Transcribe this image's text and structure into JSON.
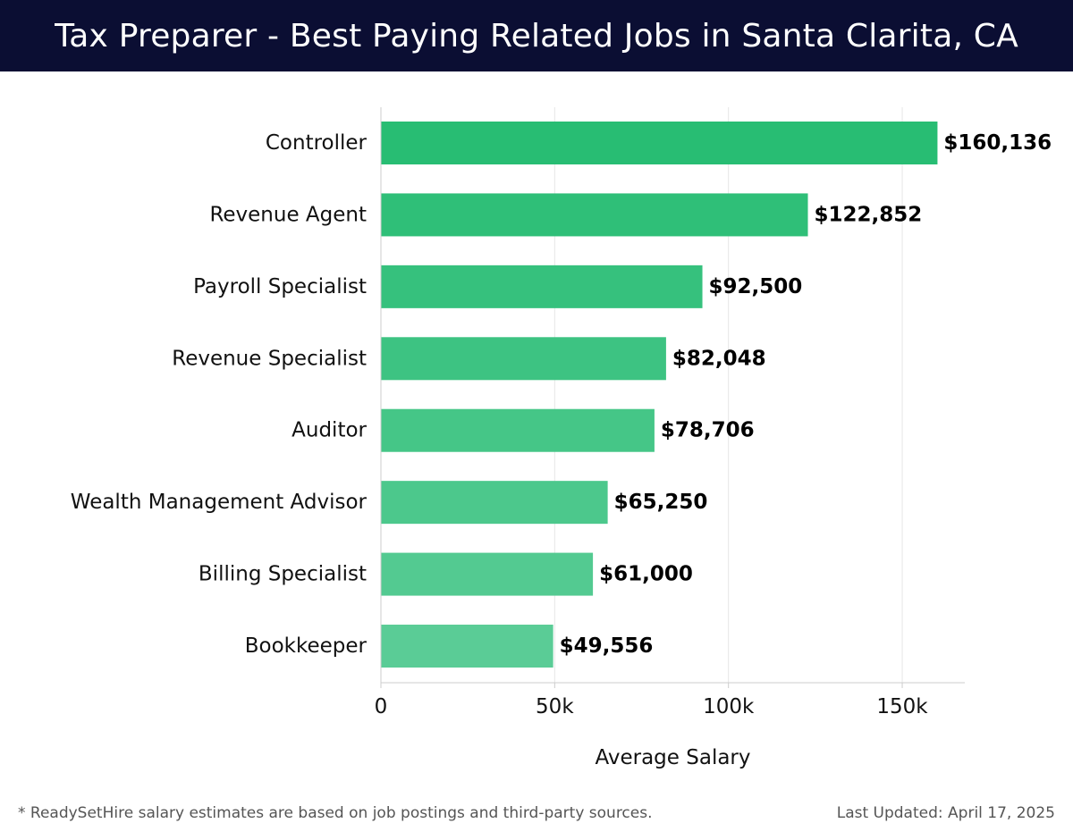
{
  "page": {
    "title": "Tax Preparer - Best Paying Related Jobs in Santa Clarita, CA"
  },
  "chart_data": {
    "type": "bar",
    "orientation": "horizontal",
    "categories": [
      "Controller",
      "Revenue Agent",
      "Payroll Specialist",
      "Revenue Specialist",
      "Auditor",
      "Wealth Management Advisor",
      "Billing Specialist",
      "Bookkeeper"
    ],
    "values": [
      160136,
      122852,
      92500,
      82048,
      78706,
      65250,
      61000,
      49556
    ],
    "value_labels": [
      "$160,136",
      "$122,852",
      "$92,500",
      "$82,048",
      "$78,706",
      "$65,250",
      "$61,000",
      "$49,556"
    ],
    "xlabel": "Average Salary",
    "ylabel": "",
    "xlim": [
      0,
      168000
    ],
    "x_ticks": [
      0,
      50000,
      100000,
      150000
    ],
    "x_tick_labels": [
      "0",
      "50k",
      "100k",
      "150k"
    ],
    "grid": true,
    "bar_color_start": "#28bd73",
    "bar_color_end": "#5acc96"
  },
  "footer": {
    "note": "* ReadySetHire salary estimates are based on job postings and third-party sources.",
    "updated_label": "Last Updated:",
    "updated_date": "April 17, 2025"
  },
  "colors": {
    "header_bg": "#0b0e33",
    "grid": "#e6e6e6",
    "axis": "#cccccc",
    "text": "#111111",
    "footer_text": "#555555"
  }
}
